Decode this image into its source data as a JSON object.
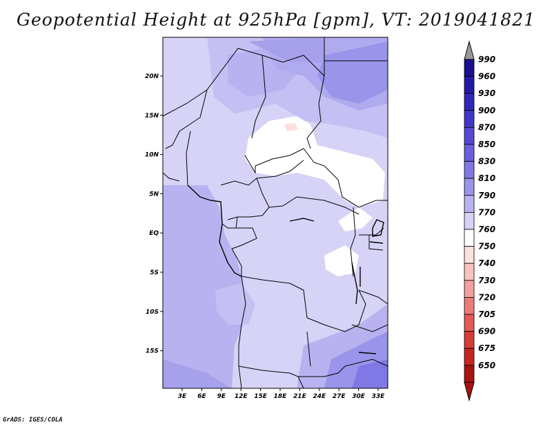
{
  "title": "Geopotential Height at 925hPa [gpm], VT: 2019041821",
  "credit": "GrADS: IGES/COLA",
  "map": {
    "variable": "Geopotential Height",
    "level": "925hPa",
    "units": "gpm",
    "valid_time": "2019041821",
    "lat_ticks": [
      "20N",
      "15N",
      "10N",
      "5N",
      "EQ",
      "5S",
      "10S",
      "15S"
    ],
    "lon_ticks": [
      "3E",
      "6E",
      "9E",
      "12E",
      "15E",
      "18E",
      "21E",
      "24E",
      "27E",
      "30E",
      "33E"
    ]
  },
  "colorbar": {
    "labels": [
      "990",
      "960",
      "930",
      "900",
      "870",
      "850",
      "830",
      "810",
      "790",
      "770",
      "760",
      "750",
      "740",
      "730",
      "720",
      "705",
      "690",
      "675",
      "650"
    ],
    "colors": [
      "#1a0f8c",
      "#2419a6",
      "#3226b8",
      "#4236c8",
      "#5548d2",
      "#6a5fdc",
      "#8078e4",
      "#9a94ea",
      "#b8b3f0",
      "#d6d3f7",
      "#ffffff",
      "#fde0de",
      "#f9c3c0",
      "#f3a09c",
      "#ec7c78",
      "#e25a56",
      "#d63c38",
      "#c52622",
      "#a8120f"
    ],
    "top_arrow_color": "#9a9a9a",
    "bottom_arrow_color": "#a8120f"
  }
}
